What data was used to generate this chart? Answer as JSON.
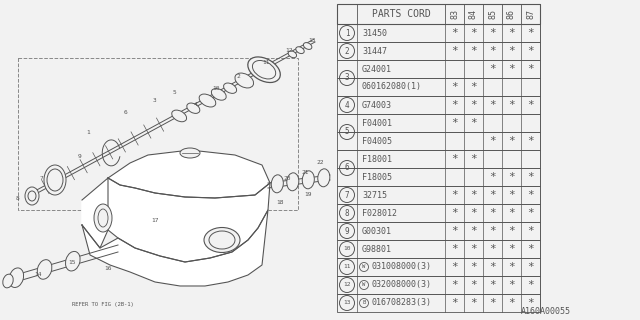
{
  "bg_color": "#f2f2f2",
  "parts_cord_header": "PARTS CORD",
  "year_cols": [
    "83",
    "84",
    "85",
    "86",
    "87"
  ],
  "rows": [
    {
      "num": "1",
      "prefix": "",
      "part": "31450",
      "marks": [
        1,
        1,
        1,
        1,
        1
      ]
    },
    {
      "num": "2",
      "prefix": "",
      "part": "31447",
      "marks": [
        1,
        1,
        1,
        1,
        1
      ]
    },
    {
      "num": "3",
      "prefix": "",
      "part": "G24001",
      "marks": [
        0,
        0,
        1,
        1,
        1
      ]
    },
    {
      "num": "3",
      "prefix": "",
      "part": "060162080(1)",
      "marks": [
        1,
        1,
        0,
        0,
        0
      ]
    },
    {
      "num": "4",
      "prefix": "",
      "part": "G74003",
      "marks": [
        1,
        1,
        1,
        1,
        1
      ]
    },
    {
      "num": "5",
      "prefix": "",
      "part": "F04001",
      "marks": [
        1,
        1,
        0,
        0,
        0
      ]
    },
    {
      "num": "5",
      "prefix": "",
      "part": "F04005",
      "marks": [
        0,
        0,
        1,
        1,
        1
      ]
    },
    {
      "num": "6",
      "prefix": "",
      "part": "F18001",
      "marks": [
        1,
        1,
        0,
        0,
        0
      ]
    },
    {
      "num": "6",
      "prefix": "",
      "part": "F18005",
      "marks": [
        0,
        0,
        1,
        1,
        1
      ]
    },
    {
      "num": "7",
      "prefix": "",
      "part": "32715",
      "marks": [
        1,
        1,
        1,
        1,
        1
      ]
    },
    {
      "num": "8",
      "prefix": "",
      "part": "F028012",
      "marks": [
        1,
        1,
        1,
        1,
        1
      ]
    },
    {
      "num": "9",
      "prefix": "",
      "part": "G00301",
      "marks": [
        1,
        1,
        1,
        1,
        1
      ]
    },
    {
      "num": "10",
      "prefix": "",
      "part": "G98801",
      "marks": [
        1,
        1,
        1,
        1,
        1
      ]
    },
    {
      "num": "11",
      "prefix": "W",
      "part": "031008000(3)",
      "marks": [
        1,
        1,
        1,
        1,
        1
      ]
    },
    {
      "num": "12",
      "prefix": "W",
      "part": "032008000(3)",
      "marks": [
        1,
        1,
        1,
        1,
        1
      ]
    },
    {
      "num": "13",
      "prefix": "B",
      "part": "016708283(3)",
      "marks": [
        1,
        1,
        1,
        1,
        1
      ]
    }
  ],
  "diagram_label": "A160A00055",
  "refer_text": "REFER TO FIG (2B-1)",
  "line_color": "#555555",
  "table_border_color": "#555555"
}
